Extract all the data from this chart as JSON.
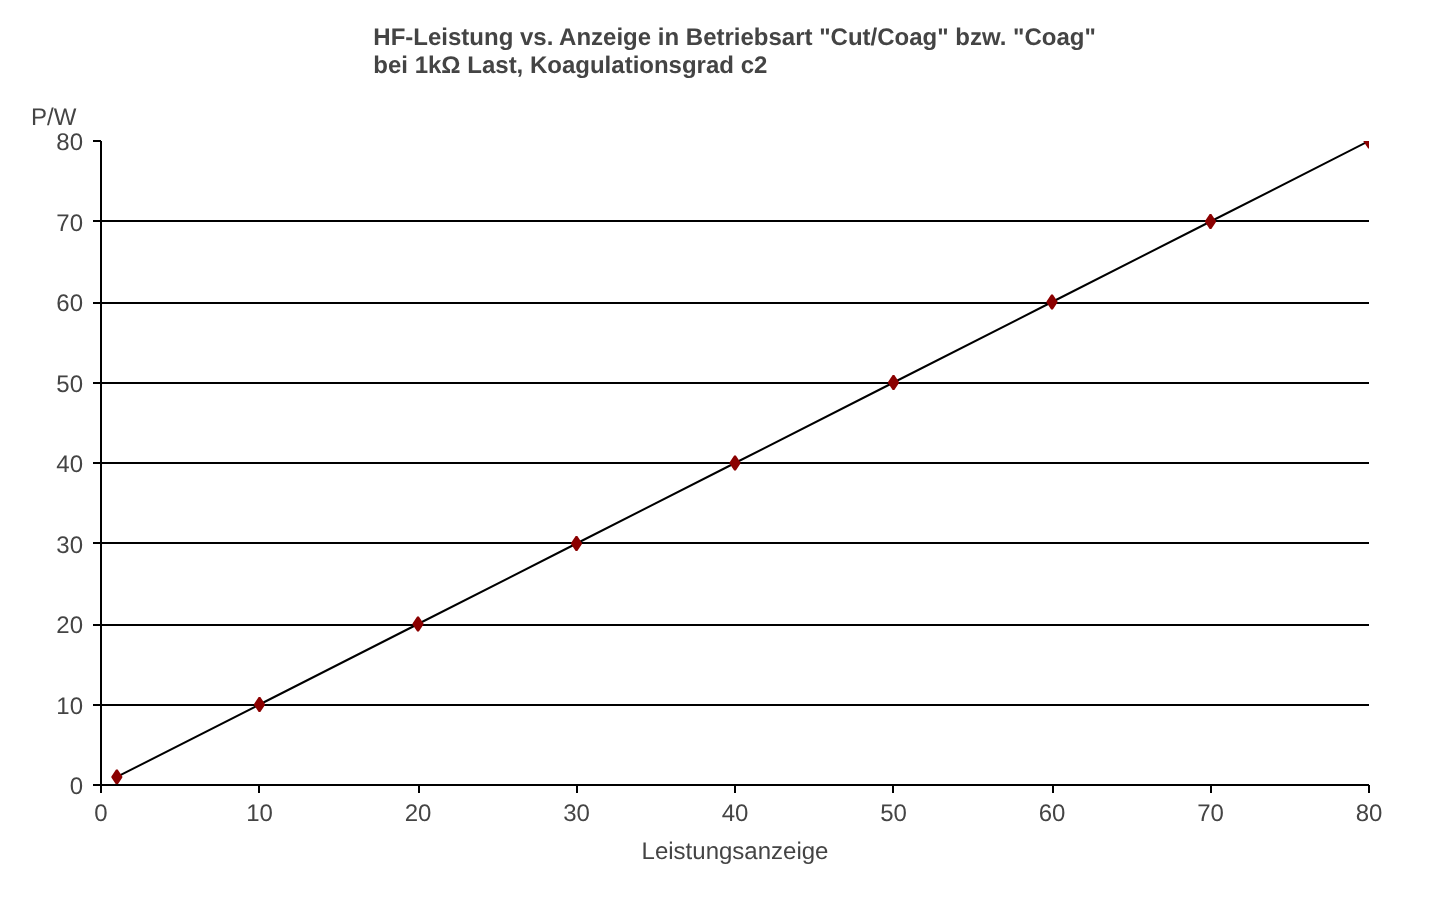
{
  "chart_data": {
    "type": "line",
    "title": "HF-Leistung vs. Anzeige in Betriebsart \"Cut/Coag\" bzw. \"Coag\"\nbei 1kΩ Last, Koagulationsgrad c2",
    "xlabel": "Leistungsanzeige",
    "ylabel": "P/W",
    "x": [
      1,
      10,
      20,
      30,
      40,
      50,
      60,
      70,
      80
    ],
    "series": [
      {
        "color": "#000000",
        "marker": "none",
        "values": [
          1,
          10,
          20,
          30,
          40,
          50,
          60,
          70,
          80
        ]
      },
      {
        "type": "scatter",
        "color": "#8b0000",
        "marker": "diamond",
        "values": [
          1,
          10,
          20,
          30,
          40,
          50,
          60,
          70,
          80
        ]
      }
    ],
    "xlim": [
      0,
      80
    ],
    "ylim": [
      0,
      80
    ],
    "xticks": [
      0,
      10,
      20,
      30,
      40,
      50,
      60,
      70,
      80
    ],
    "yticks": [
      0,
      10,
      20,
      30,
      40,
      50,
      60,
      70,
      80
    ],
    "grid": "y"
  }
}
